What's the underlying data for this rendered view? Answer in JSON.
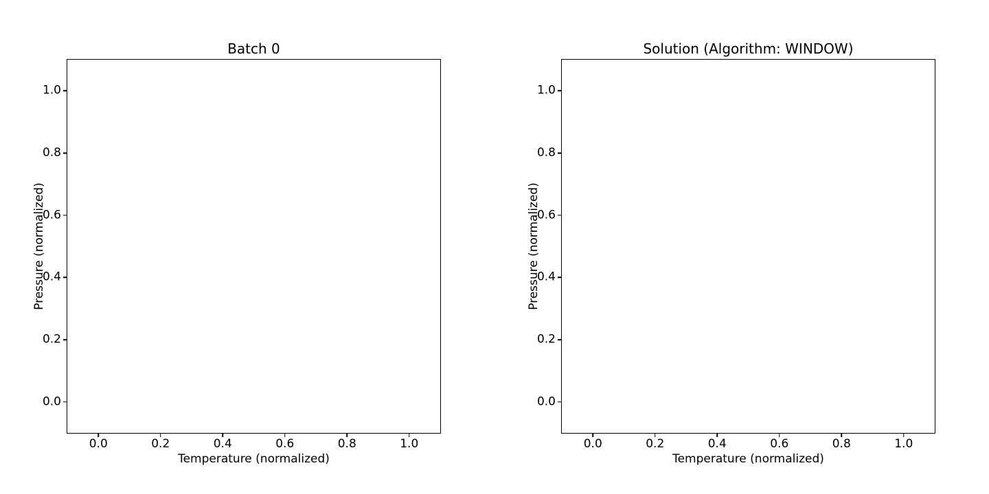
{
  "figure": {
    "background": "#ffffff",
    "axis_color": "#000000",
    "text_color": "#000000"
  },
  "chart_data": [
    {
      "type": "scatter",
      "title": "Batch 0",
      "xlabel": "Temperature (normalized)",
      "ylabel": "Pressure (normalized)",
      "xlim": [
        -0.1,
        1.1
      ],
      "ylim": [
        -0.1,
        1.1
      ],
      "xticks": [
        0.0,
        0.2,
        0.4,
        0.6,
        0.8,
        1.0
      ],
      "xticklabels": [
        "0.0",
        "0.2",
        "0.4",
        "0.6",
        "0.8",
        "1.0"
      ],
      "yticks": [
        0.0,
        0.2,
        0.4,
        0.6,
        0.8,
        1.0
      ],
      "yticklabels": [
        "0.0",
        "0.2",
        "0.4",
        "0.6",
        "0.8",
        "1.0"
      ],
      "series": [],
      "grid": false,
      "legend": false
    },
    {
      "type": "scatter",
      "title": "Solution (Algorithm: WINDOW)",
      "xlabel": "Temperature (normalized)",
      "ylabel": "Pressure (normalized)",
      "xlim": [
        -0.1,
        1.1
      ],
      "ylim": [
        -0.1,
        1.1
      ],
      "xticks": [
        0.0,
        0.2,
        0.4,
        0.6,
        0.8,
        1.0
      ],
      "xticklabels": [
        "0.0",
        "0.2",
        "0.4",
        "0.6",
        "0.8",
        "1.0"
      ],
      "yticks": [
        0.0,
        0.2,
        0.4,
        0.6,
        0.8,
        1.0
      ],
      "yticklabels": [
        "0.0",
        "0.2",
        "0.4",
        "0.6",
        "0.8",
        "1.0"
      ],
      "series": [],
      "grid": false,
      "legend": false
    }
  ]
}
